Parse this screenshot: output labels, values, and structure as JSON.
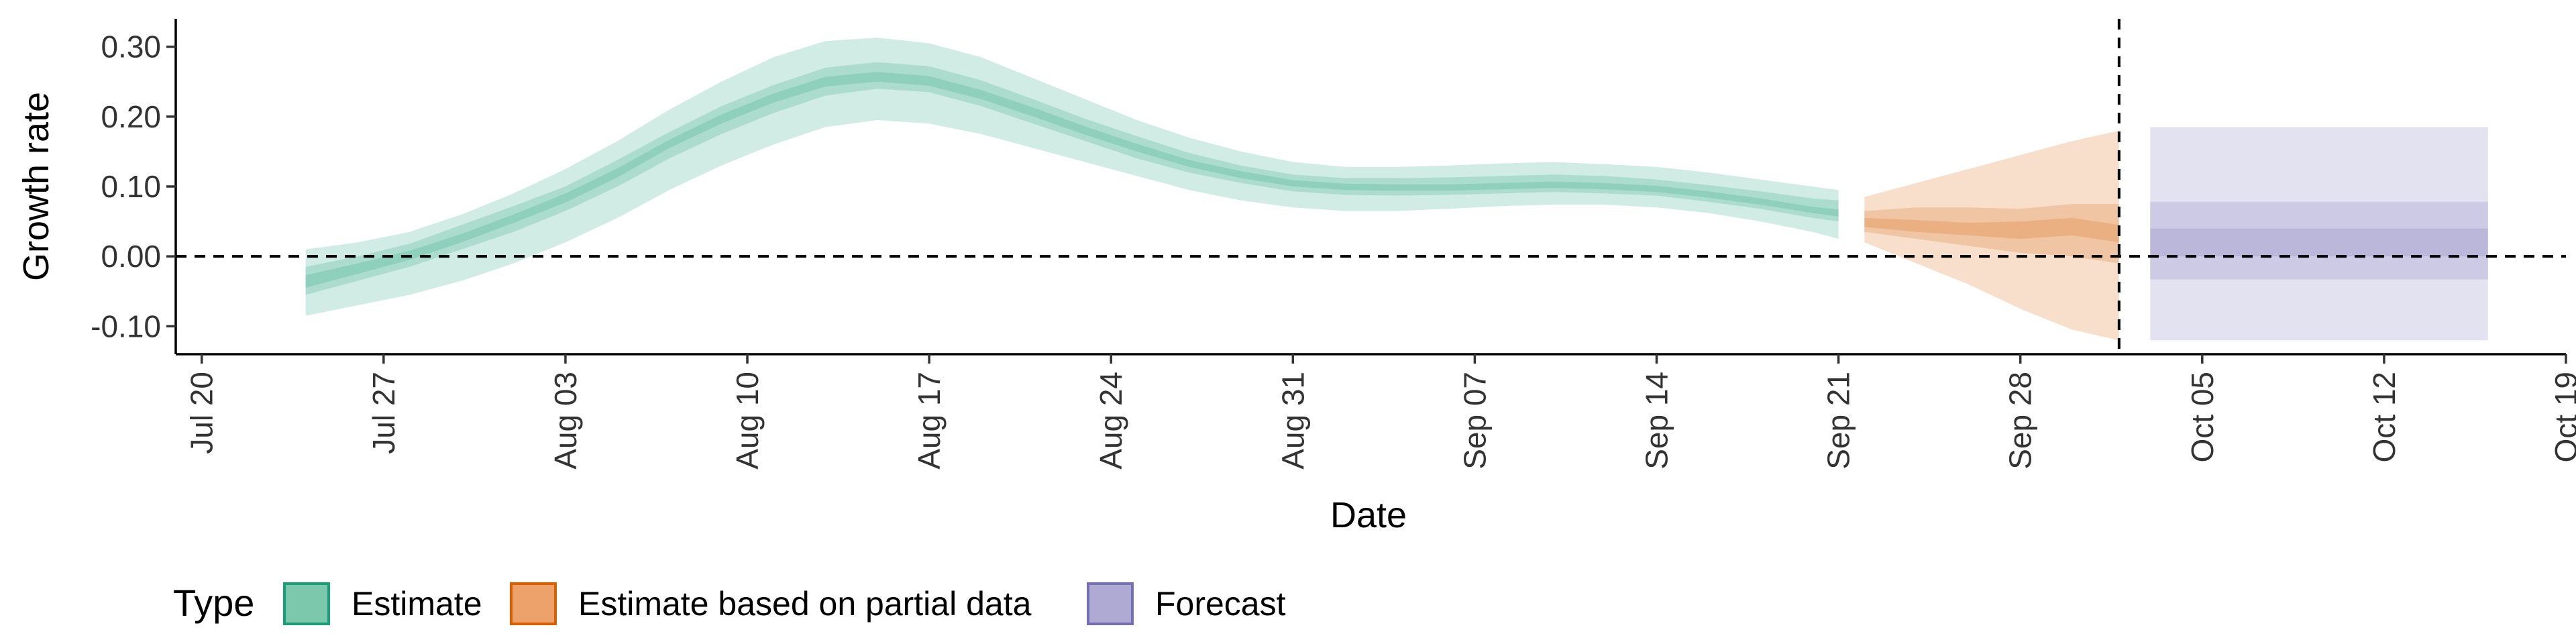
{
  "chart_data": {
    "type": "area",
    "xlabel": "Date",
    "ylabel": "Growth rate",
    "ylim": [
      -0.14,
      0.34
    ],
    "y_ticks": [
      -0.1,
      0.0,
      0.1,
      0.2,
      0.3
    ],
    "y_tick_labels": [
      "-0.10",
      "0.00",
      "0.10",
      "0.20",
      "0.30"
    ],
    "x_range_days": [
      -1,
      91
    ],
    "x_ticks": [
      {
        "day": 0,
        "label": "Jul 20"
      },
      {
        "day": 7,
        "label": "Jul 27"
      },
      {
        "day": 14,
        "label": "Aug 03"
      },
      {
        "day": 21,
        "label": "Aug 10"
      },
      {
        "day": 28,
        "label": "Aug 17"
      },
      {
        "day": 35,
        "label": "Aug 24"
      },
      {
        "day": 42,
        "label": "Aug 31"
      },
      {
        "day": 49,
        "label": "Sep 07"
      },
      {
        "day": 56,
        "label": "Sep 14"
      },
      {
        "day": 63,
        "label": "Sep 21"
      },
      {
        "day": 70,
        "label": "Sep 28"
      },
      {
        "day": 77,
        "label": "Oct 05"
      },
      {
        "day": 84,
        "label": "Oct 12"
      },
      {
        "day": 91,
        "label": "Oct 19"
      }
    ],
    "reference_lines": {
      "horizontal_y": 0.0,
      "vertical_day": 73.8
    },
    "legend": {
      "title": "Type",
      "position": "bottom-left",
      "items": [
        {
          "label": "Estimate",
          "fill": "#7BC8AC",
          "border": "#1B9E77"
        },
        {
          "label": "Estimate based on partial data",
          "fill": "#ECA26A",
          "border": "#D95F02"
        },
        {
          "label": "Forecast",
          "fill": "#AEAAD4",
          "border": "#7570B3"
        }
      ]
    },
    "series": [
      {
        "type_label": "Estimate",
        "color": "#1B9E77",
        "x": [
          4,
          6,
          8,
          10,
          12,
          14,
          16,
          18,
          20,
          22,
          24,
          26,
          28,
          30,
          32,
          34,
          36,
          38,
          40,
          42,
          44,
          46,
          48,
          50,
          52,
          54,
          56,
          58,
          60,
          62,
          63
        ],
        "lower90": [
          -0.085,
          -0.07,
          -0.055,
          -0.035,
          -0.01,
          0.02,
          0.055,
          0.095,
          0.13,
          0.16,
          0.185,
          0.195,
          0.19,
          0.175,
          0.155,
          0.135,
          0.115,
          0.095,
          0.08,
          0.07,
          0.065,
          0.065,
          0.068,
          0.072,
          0.074,
          0.074,
          0.07,
          0.062,
          0.05,
          0.035,
          0.025
        ],
        "lower50": [
          -0.055,
          -0.035,
          -0.015,
          0.01,
          0.035,
          0.065,
          0.1,
          0.14,
          0.175,
          0.205,
          0.23,
          0.24,
          0.235,
          0.215,
          0.19,
          0.165,
          0.14,
          0.12,
          0.105,
          0.093,
          0.088,
          0.087,
          0.088,
          0.09,
          0.092,
          0.09,
          0.087,
          0.078,
          0.068,
          0.055,
          0.05
        ],
        "lower20": [
          -0.045,
          -0.025,
          -0.005,
          0.02,
          0.048,
          0.077,
          0.113,
          0.155,
          0.19,
          0.22,
          0.243,
          0.25,
          0.244,
          0.225,
          0.2,
          0.174,
          0.15,
          0.128,
          0.112,
          0.1,
          0.095,
          0.094,
          0.094,
          0.096,
          0.098,
          0.096,
          0.092,
          0.084,
          0.074,
          0.062,
          0.057
        ],
        "upper20": [
          -0.027,
          -0.01,
          0.008,
          0.032,
          0.06,
          0.09,
          0.126,
          0.167,
          0.203,
          0.233,
          0.257,
          0.264,
          0.258,
          0.238,
          0.213,
          0.186,
          0.161,
          0.138,
          0.122,
          0.109,
          0.104,
          0.103,
          0.103,
          0.105,
          0.107,
          0.105,
          0.101,
          0.093,
          0.083,
          0.071,
          0.067
        ],
        "upper50": [
          -0.015,
          0.0,
          0.018,
          0.045,
          0.072,
          0.1,
          0.138,
          0.178,
          0.215,
          0.245,
          0.27,
          0.278,
          0.272,
          0.252,
          0.225,
          0.197,
          0.172,
          0.148,
          0.13,
          0.117,
          0.112,
          0.112,
          0.113,
          0.115,
          0.117,
          0.115,
          0.11,
          0.102,
          0.093,
          0.083,
          0.08
        ],
        "upper90": [
          0.01,
          0.02,
          0.035,
          0.06,
          0.09,
          0.125,
          0.165,
          0.21,
          0.25,
          0.285,
          0.308,
          0.313,
          0.305,
          0.285,
          0.255,
          0.225,
          0.195,
          0.17,
          0.15,
          0.135,
          0.128,
          0.128,
          0.13,
          0.133,
          0.135,
          0.132,
          0.128,
          0.12,
          0.11,
          0.1,
          0.095
        ]
      },
      {
        "type_label": "Estimate based on partial data",
        "color": "#D95F02",
        "x": [
          64,
          66,
          68,
          70,
          72,
          73.8
        ],
        "lower90": [
          0.02,
          -0.01,
          -0.04,
          -0.075,
          -0.105,
          -0.12
        ],
        "lower50": [
          0.035,
          0.025,
          0.015,
          0.005,
          0.0,
          -0.01
        ],
        "lower20": [
          0.042,
          0.035,
          0.03,
          0.025,
          0.03,
          0.02
        ],
        "upper20": [
          0.055,
          0.052,
          0.048,
          0.05,
          0.055,
          0.045
        ],
        "upper50": [
          0.065,
          0.07,
          0.07,
          0.068,
          0.075,
          0.075
        ],
        "upper90": [
          0.085,
          0.105,
          0.125,
          0.145,
          0.165,
          0.18
        ]
      },
      {
        "type_label": "Forecast",
        "color": "#7570B3",
        "x": [
          75,
          88
        ],
        "lower90": [
          -0.12,
          -0.12
        ],
        "lower50": [
          -0.033,
          -0.033
        ],
        "lower20": [
          0.0,
          0.0
        ],
        "upper20": [
          0.04,
          0.04
        ],
        "upper50": [
          0.078,
          0.078
        ],
        "upper90": [
          0.185,
          0.185
        ]
      }
    ]
  }
}
